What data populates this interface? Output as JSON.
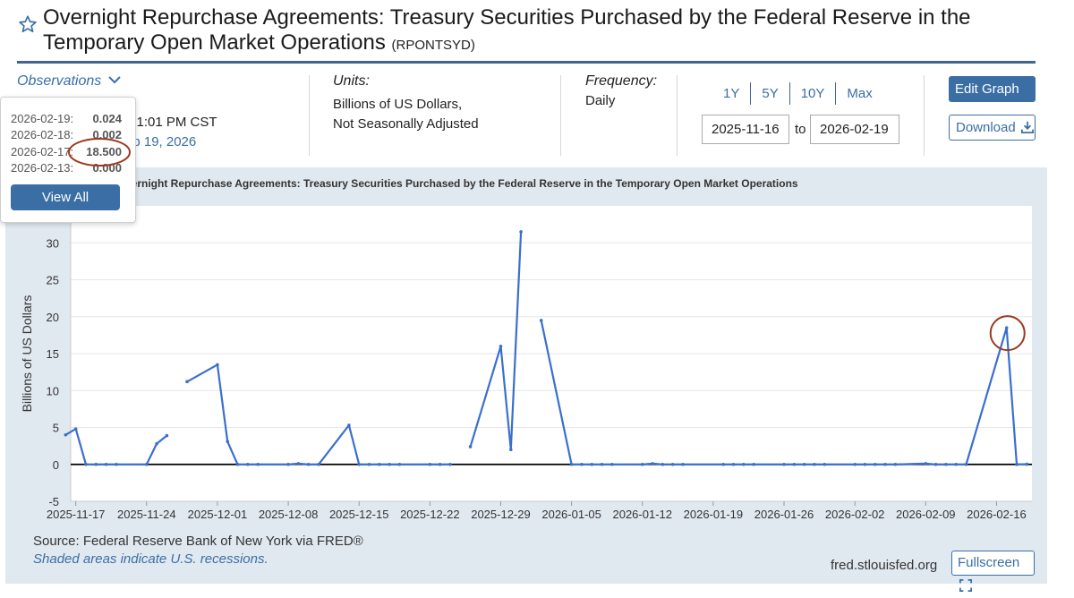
{
  "page": {
    "title": "Overnight Repurchase Agreements: Treasury Securities Purchased by the Federal Reserve in the Temporary Open Market Operations",
    "series_id": "(RPONTSYD)"
  },
  "observations": {
    "label": "Observations",
    "updated_text": "6 1:01 PM CST",
    "next_release_text": "eb 19, 2026",
    "popup": [
      {
        "date": "2026-02-19:",
        "value": "0.024"
      },
      {
        "date": "2026-02-18:",
        "value": "0.002"
      },
      {
        "date": "2026-02-17:",
        "value": "18.500"
      },
      {
        "date": "2026-02-13:",
        "value": "0.000"
      }
    ],
    "view_all_label": "View All"
  },
  "units": {
    "label": "Units:",
    "line1": "Billions of US Dollars,",
    "line2": "Not Seasonally Adjusted"
  },
  "frequency": {
    "label": "Frequency:",
    "value": "Daily"
  },
  "range": {
    "buttons": [
      "1Y",
      "5Y",
      "10Y",
      "Max"
    ],
    "start": "2025-11-16",
    "to_label": "to",
    "end": "2026-02-19"
  },
  "actions": {
    "edit_graph": "Edit Graph",
    "download": "Download",
    "fullscreen": "Fullscreen"
  },
  "footer": {
    "source": "Source: Federal Reserve Bank of New York via FRED®",
    "shaded": "Shaded areas indicate U.S. recessions.",
    "site": "fred.stlouisfed.org"
  },
  "colors": {
    "line": "#3a6fcf",
    "brand": "#3a6ea5",
    "highlight": "#9a3a1f"
  },
  "chart_data": {
    "type": "line",
    "title": "vernight Repurchase Agreements: Treasury Securities Purchased by the Federal Reserve in the Temporary Open Market Operations",
    "ylabel": "Billions of US Dollars",
    "xlabel": "",
    "ylim": [
      -5,
      35
    ],
    "yticks": [
      -5,
      0,
      5,
      10,
      15,
      20,
      25,
      30
    ],
    "xlim": [
      "2025-11-16",
      "2026-02-19"
    ],
    "xticks": [
      "2025-11-17",
      "2025-11-24",
      "2025-12-01",
      "2025-12-08",
      "2025-12-15",
      "2025-12-22",
      "2025-12-29",
      "2026-01-05",
      "2026-01-12",
      "2026-01-19",
      "2026-01-26",
      "2026-02-02",
      "2026-02-09",
      "2026-02-16"
    ],
    "segments": [
      [
        [
          "2025-11-16",
          4.0
        ],
        [
          "2025-11-17",
          4.8
        ],
        [
          "2025-11-18",
          0.0
        ],
        [
          "2025-11-19",
          0.0
        ],
        [
          "2025-11-20",
          0.0
        ],
        [
          "2025-11-21",
          0.0
        ],
        [
          "2025-11-24",
          0.0
        ],
        [
          "2025-11-25",
          2.8
        ],
        [
          "2025-11-26",
          3.9
        ]
      ],
      [
        [
          "2025-11-28",
          11.2
        ],
        [
          "2025-12-01",
          13.5
        ],
        [
          "2025-12-02",
          3.1
        ],
        [
          "2025-12-03",
          0.0
        ],
        [
          "2025-12-04",
          0.0
        ],
        [
          "2025-12-05",
          0.0
        ],
        [
          "2025-12-08",
          0.0
        ],
        [
          "2025-12-09",
          0.1
        ],
        [
          "2025-12-10",
          0.0
        ],
        [
          "2025-12-11",
          0.0
        ],
        [
          "2025-12-14",
          5.3
        ],
        [
          "2025-12-15",
          0.0
        ],
        [
          "2025-12-16",
          0.0
        ],
        [
          "2025-12-17",
          0.0
        ],
        [
          "2025-12-18",
          0.0
        ],
        [
          "2025-12-19",
          0.0
        ],
        [
          "2025-12-22",
          0.0
        ],
        [
          "2025-12-23",
          0.0
        ],
        [
          "2025-12-24",
          0.0
        ]
      ],
      [
        [
          "2025-12-26",
          2.4
        ],
        [
          "2025-12-29",
          16.0
        ],
        [
          "2025-12-30",
          2.0
        ],
        [
          "2025-12-31",
          31.5
        ]
      ],
      [
        [
          "2026-01-02",
          19.5
        ],
        [
          "2026-01-05",
          0.0
        ],
        [
          "2026-01-06",
          0.0
        ],
        [
          "2026-01-07",
          0.0
        ],
        [
          "2026-01-08",
          0.0
        ],
        [
          "2026-01-09",
          0.0
        ],
        [
          "2026-01-12",
          0.0
        ],
        [
          "2026-01-13",
          0.1
        ],
        [
          "2026-01-14",
          0.0
        ],
        [
          "2026-01-15",
          0.0
        ],
        [
          "2026-01-16",
          0.0
        ],
        [
          "2026-01-20",
          0.0
        ],
        [
          "2026-01-21",
          0.0
        ],
        [
          "2026-01-22",
          0.0
        ],
        [
          "2026-01-23",
          0.0
        ],
        [
          "2026-01-26",
          0.0
        ],
        [
          "2026-01-27",
          0.0
        ],
        [
          "2026-01-28",
          0.0
        ],
        [
          "2026-01-29",
          0.0
        ],
        [
          "2026-01-30",
          0.0
        ],
        [
          "2026-02-02",
          0.0
        ],
        [
          "2026-02-03",
          0.0
        ],
        [
          "2026-02-04",
          0.0
        ],
        [
          "2026-02-05",
          0.0
        ],
        [
          "2026-02-06",
          0.0
        ],
        [
          "2026-02-09",
          0.1
        ],
        [
          "2026-02-10",
          0.0
        ],
        [
          "2026-02-11",
          0.0
        ],
        [
          "2026-02-12",
          0.0
        ],
        [
          "2026-02-13",
          0.0
        ],
        [
          "2026-02-17",
          18.5
        ],
        [
          "2026-02-18",
          0.002
        ],
        [
          "2026-02-19",
          0.024
        ]
      ]
    ],
    "highlight": {
      "date": "2026-02-17",
      "value": 18.5
    }
  }
}
